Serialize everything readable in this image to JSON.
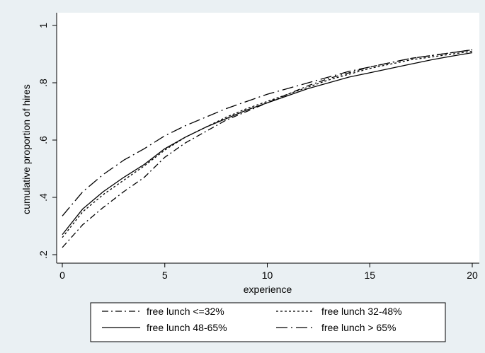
{
  "chart_data": {
    "type": "line",
    "title": "",
    "xlabel": "experience",
    "ylabel": "cumulative proportion of hires",
    "xlim": [
      0,
      20
    ],
    "ylim": [
      0.2,
      1.0
    ],
    "x_ticks": [
      0,
      5,
      10,
      15,
      20
    ],
    "x_tick_labels": [
      "0",
      "5",
      "10",
      "15",
      "20"
    ],
    "y_ticks": [
      0.2,
      0.4,
      0.6,
      0.8,
      1.0
    ],
    "y_tick_labels": [
      ".2",
      ".4",
      ".6",
      ".8",
      "1"
    ],
    "grid": false,
    "legend_position": "bottom",
    "x": [
      0,
      1,
      2,
      3,
      4,
      5,
      6,
      7,
      8,
      9,
      10,
      11,
      12,
      13,
      14,
      15,
      16,
      17,
      18,
      19,
      20
    ],
    "series": [
      {
        "name": "free lunch <=32%",
        "style": "dash-dot",
        "values": [
          0.225,
          0.305,
          0.365,
          0.42,
          0.47,
          0.54,
          0.59,
          0.63,
          0.67,
          0.7,
          0.73,
          0.76,
          0.79,
          0.815,
          0.835,
          0.855,
          0.87,
          0.885,
          0.895,
          0.905,
          0.915
        ]
      },
      {
        "name": "free lunch 32-48%",
        "style": "short-dash",
        "values": [
          0.26,
          0.35,
          0.41,
          0.46,
          0.51,
          0.565,
          0.61,
          0.645,
          0.68,
          0.71,
          0.735,
          0.76,
          0.785,
          0.81,
          0.83,
          0.85,
          0.865,
          0.88,
          0.89,
          0.9,
          0.91
        ]
      },
      {
        "name": "free lunch 48-65%",
        "style": "solid",
        "values": [
          0.27,
          0.36,
          0.42,
          0.47,
          0.515,
          0.57,
          0.61,
          0.645,
          0.675,
          0.705,
          0.73,
          0.755,
          0.78,
          0.8,
          0.82,
          0.835,
          0.85,
          0.865,
          0.88,
          0.893,
          0.905
        ]
      },
      {
        "name": "free lunch > 65%",
        "style": "long-dash-dot",
        "values": [
          0.335,
          0.42,
          0.48,
          0.53,
          0.57,
          0.615,
          0.65,
          0.68,
          0.71,
          0.735,
          0.76,
          0.78,
          0.8,
          0.82,
          0.84,
          0.855,
          0.87,
          0.885,
          0.895,
          0.905,
          0.915
        ]
      }
    ]
  },
  "colors": {
    "background": "#eaf0f3",
    "plot_background": "#ffffff",
    "line": "#000000"
  }
}
